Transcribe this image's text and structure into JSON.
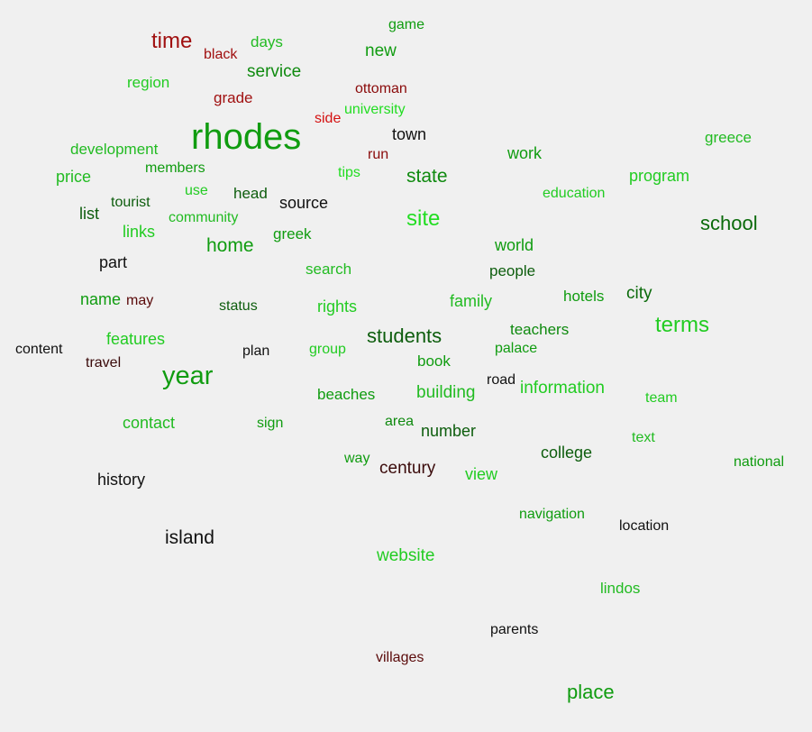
{
  "words": [
    {
      "text": "rhodes",
      "color": "#109c10"
    },
    {
      "text": "year",
      "color": "#109c10"
    },
    {
      "text": "time",
      "color": "#a01010"
    },
    {
      "text": "site",
      "color": "#22dd22"
    },
    {
      "text": "terms",
      "color": "#22cc22"
    },
    {
      "text": "school",
      "color": "#0a6a0a"
    },
    {
      "text": "students",
      "color": "#0d5d0d"
    },
    {
      "text": "place",
      "color": "#109c10"
    },
    {
      "text": "island",
      "color": "#111111"
    },
    {
      "text": "home",
      "color": "#109c10"
    },
    {
      "text": "state",
      "color": "#0f8a0f"
    },
    {
      "text": "service",
      "color": "#0f8a0f"
    },
    {
      "text": "new",
      "color": "#109c10"
    },
    {
      "text": "information",
      "color": "#22cc22"
    },
    {
      "text": "building",
      "color": "#22bb22"
    },
    {
      "text": "century",
      "color": "#3a0a0a"
    },
    {
      "text": "website",
      "color": "#22cc22"
    },
    {
      "text": "college",
      "color": "#0d5d0d"
    },
    {
      "text": "city",
      "color": "#0a6a0a"
    },
    {
      "text": "world",
      "color": "#109c10"
    },
    {
      "text": "family",
      "color": "#22bb22"
    },
    {
      "text": "source",
      "color": "#111111"
    },
    {
      "text": "work",
      "color": "#109c10"
    },
    {
      "text": "program",
      "color": "#22cc22"
    },
    {
      "text": "view",
      "color": "#22cc22"
    },
    {
      "text": "features",
      "color": "#22cc22"
    },
    {
      "text": "history",
      "color": "#111111"
    },
    {
      "text": "contact",
      "color": "#22bb22"
    },
    {
      "text": "town",
      "color": "#111111"
    },
    {
      "text": "hotels",
      "color": "#109c10"
    },
    {
      "text": "rights",
      "color": "#22cc22"
    },
    {
      "text": "search",
      "color": "#22bb22"
    },
    {
      "text": "list",
      "color": "#0d5d0d"
    },
    {
      "text": "part",
      "color": "#111111"
    },
    {
      "text": "number",
      "color": "#0d5d0d"
    },
    {
      "text": "links",
      "color": "#22cc22"
    },
    {
      "text": "price",
      "color": "#22bb22"
    },
    {
      "text": "name",
      "color": "#109c10"
    },
    {
      "text": "region",
      "color": "#22cc22"
    },
    {
      "text": "development",
      "color": "#22bb22"
    },
    {
      "text": "days",
      "color": "#22bb22"
    },
    {
      "text": "people",
      "color": "#0d5d0d"
    },
    {
      "text": "teachers",
      "color": "#0f8a0f"
    },
    {
      "text": "greece",
      "color": "#22bb22"
    },
    {
      "text": "head",
      "color": "#0d5d0d"
    },
    {
      "text": "book",
      "color": "#109c10"
    },
    {
      "text": "beaches",
      "color": "#109c10"
    },
    {
      "text": "palace",
      "color": "#109c10"
    },
    {
      "text": "greek",
      "color": "#109c10"
    },
    {
      "text": "navigation",
      "color": "#109c10"
    },
    {
      "text": "location",
      "color": "#111111"
    },
    {
      "text": "lindos",
      "color": "#22bb22"
    },
    {
      "text": "grade",
      "color": "#a01010"
    },
    {
      "text": "university",
      "color": "#22dd22"
    },
    {
      "text": "education",
      "color": "#22cc22"
    },
    {
      "text": "national",
      "color": "#109c10"
    },
    {
      "text": "team",
      "color": "#22cc22"
    },
    {
      "text": "text",
      "color": "#22bb22"
    },
    {
      "text": "tourist",
      "color": "#0d5d0d"
    },
    {
      "text": "community",
      "color": "#22bb22"
    },
    {
      "text": "members",
      "color": "#109c10"
    },
    {
      "text": "use",
      "color": "#22cc22"
    },
    {
      "text": "content",
      "color": "#111111"
    },
    {
      "text": "travel",
      "color": "#3a0a0a"
    },
    {
      "text": "plan",
      "color": "#111111"
    },
    {
      "text": "group",
      "color": "#22cc22"
    },
    {
      "text": "status",
      "color": "#0d5d0d"
    },
    {
      "text": "sign",
      "color": "#109c10"
    },
    {
      "text": "area",
      "color": "#0f8a0f"
    },
    {
      "text": "way",
      "color": "#109c10"
    },
    {
      "text": "road",
      "color": "#111111"
    },
    {
      "text": "game",
      "color": "#109c10"
    },
    {
      "text": "black",
      "color": "#a01010"
    },
    {
      "text": "ottoman",
      "color": "#8a0a0a"
    },
    {
      "text": "side",
      "color": "#d41010"
    },
    {
      "text": "run",
      "color": "#8a0a0a"
    },
    {
      "text": "tips",
      "color": "#22dd22"
    },
    {
      "text": "may",
      "color": "#5a0a0a"
    },
    {
      "text": "parents",
      "color": "#111111"
    },
    {
      "text": "villages",
      "color": "#5a0a0a"
    }
  ]
}
